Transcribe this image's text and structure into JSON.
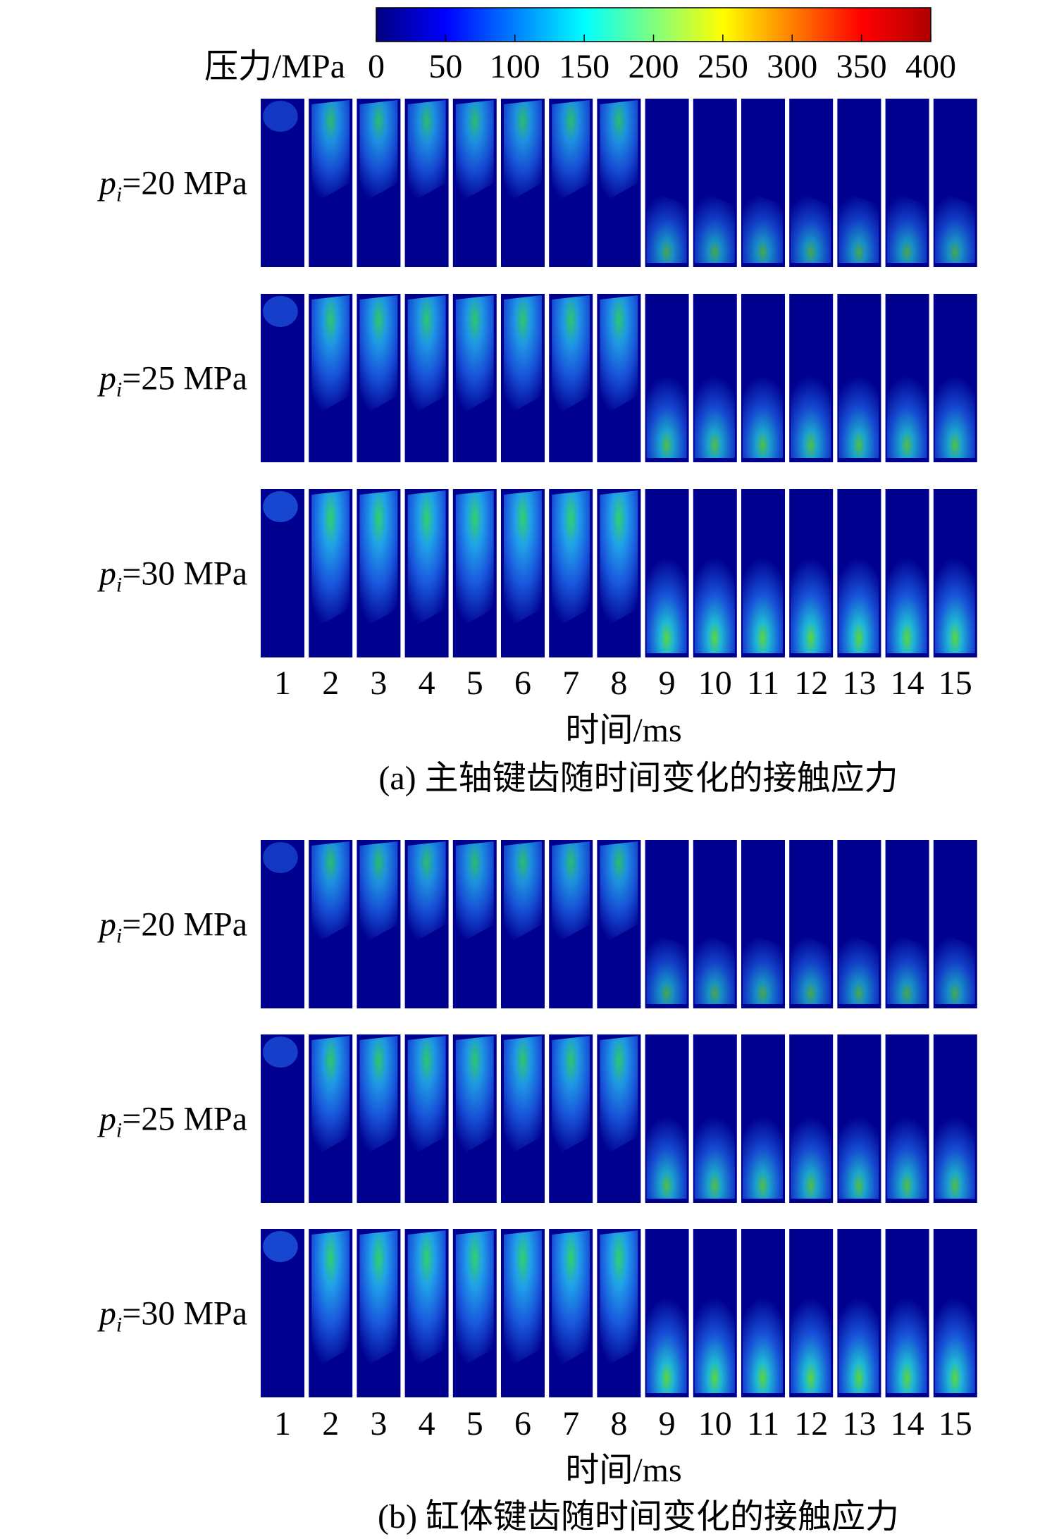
{
  "colorbar": {
    "label": "压力/MPa",
    "lim": [
      0,
      400
    ],
    "ticks": [
      0,
      50,
      100,
      150,
      200,
      250,
      300,
      350,
      400
    ]
  },
  "panels": [
    {
      "caption": "(a) 主轴键齿随时间变化的接触应力",
      "x_label": "时间/ms",
      "columns": [
        1,
        2,
        3,
        4,
        5,
        6,
        7,
        8,
        9,
        10,
        11,
        12,
        13,
        14,
        15
      ],
      "rows": [
        {
          "symbol": "p",
          "subscript": "i",
          "text": "=20 MPa"
        },
        {
          "symbol": "p",
          "subscript": "i",
          "text": "=25 MPa"
        },
        {
          "symbol": "p",
          "subscript": "i",
          "text": "=30 MPa"
        }
      ]
    },
    {
      "caption": "(b) 缸体键齿随时间变化的接触应力",
      "x_label": "时间/ms",
      "columns": [
        1,
        2,
        3,
        4,
        5,
        6,
        7,
        8,
        9,
        10,
        11,
        12,
        13,
        14,
        15
      ],
      "rows": [
        {
          "symbol": "p",
          "subscript": "i",
          "text": "=20 MPa"
        },
        {
          "symbol": "p",
          "subscript": "i",
          "text": "=25 MPa"
        },
        {
          "symbol": "p",
          "subscript": "i",
          "text": "=30 MPa"
        }
      ]
    }
  ]
}
